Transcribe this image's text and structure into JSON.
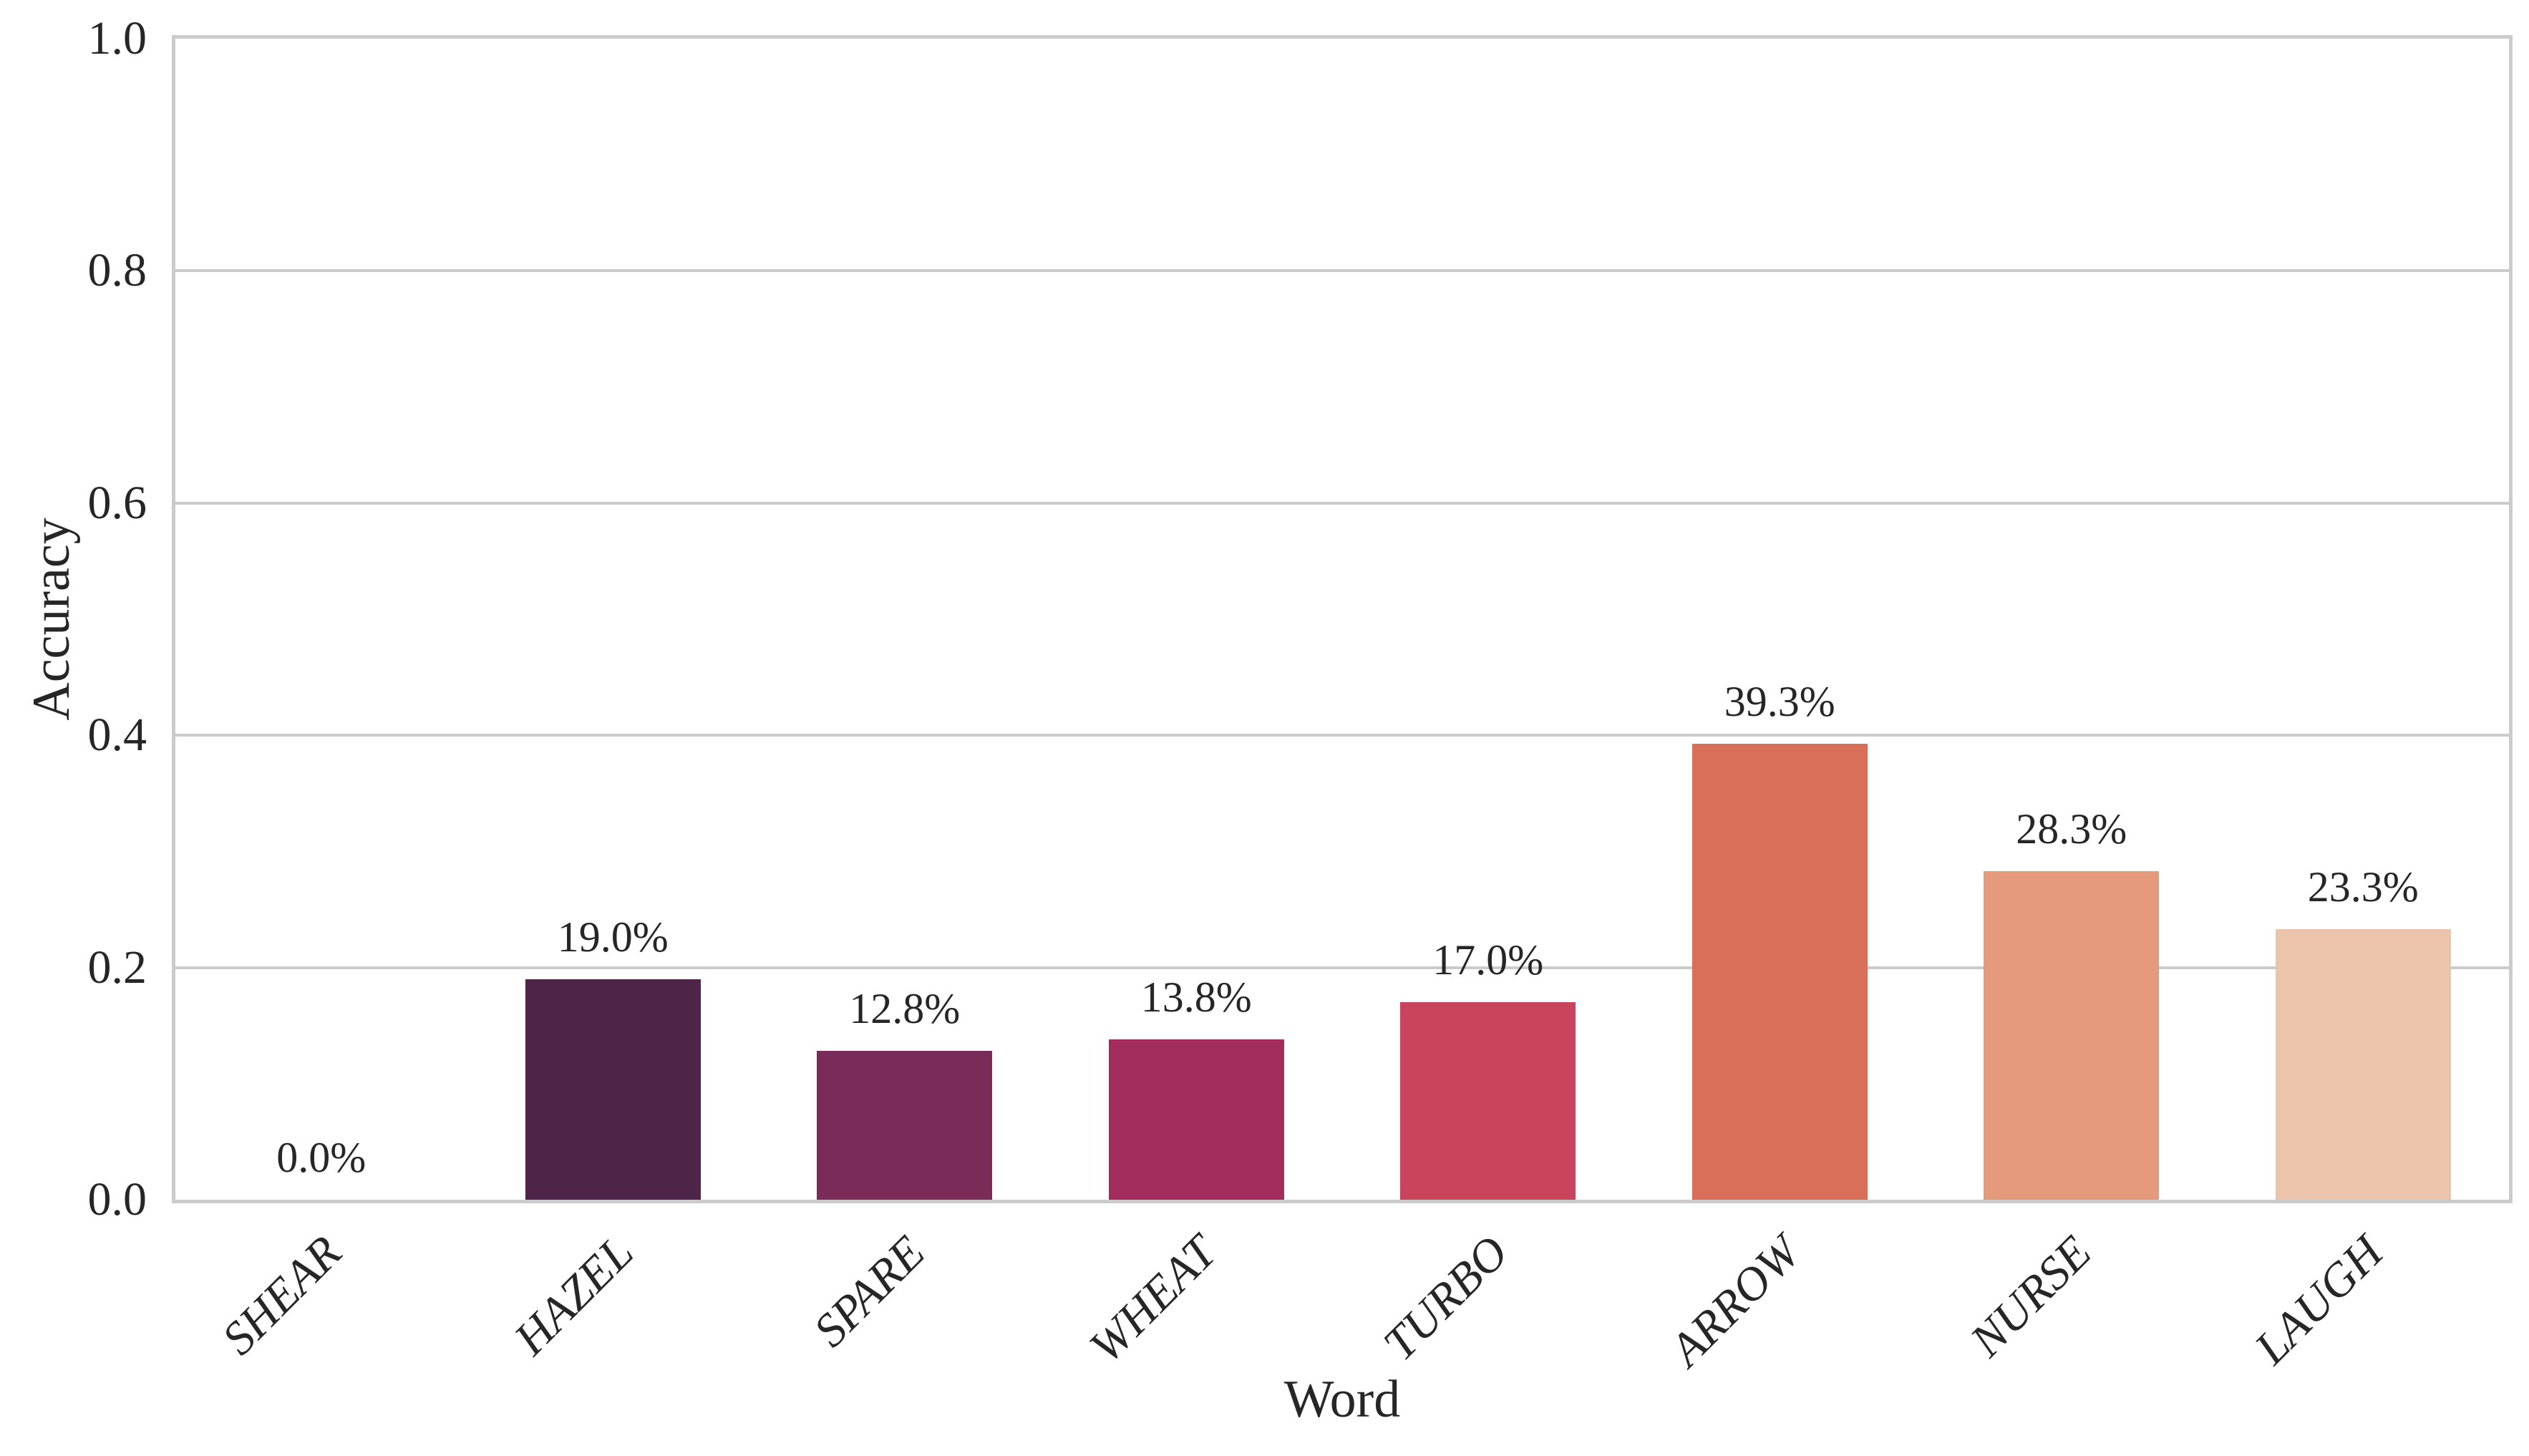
{
  "chart_data": {
    "type": "bar",
    "title": "",
    "xlabel": "Word",
    "ylabel": "Accuracy",
    "categories": [
      "SHEAR",
      "HAZEL",
      "SPARE",
      "WHEAT",
      "TURBO",
      "ARROW",
      "NURSE",
      "LAUGH"
    ],
    "values": [
      0.0,
      0.19,
      0.128,
      0.138,
      0.17,
      0.393,
      0.283,
      0.233
    ],
    "value_labels": [
      "0.0%",
      "19.0%",
      "12.8%",
      "13.8%",
      "17.0%",
      "39.3%",
      "28.3%",
      "23.3%"
    ],
    "bar_colors": [
      "#2d1a3e",
      "#4e2449",
      "#7a2b58",
      "#a22c5c",
      "#c7445a",
      "#d96f59",
      "#e49a7b",
      "#ecc3ab"
    ],
    "ylim": [
      0,
      1
    ],
    "yticks": [
      0.0,
      0.2,
      0.4,
      0.6,
      0.8,
      1.0
    ],
    "ytick_labels": [
      "0.0",
      "0.2",
      "0.4",
      "0.6",
      "0.8",
      "1.0"
    ],
    "grid": true,
    "grid_color": "#cbcbcb",
    "text_color": "#262626",
    "background_color": "#ffffff",
    "legend": null
  }
}
